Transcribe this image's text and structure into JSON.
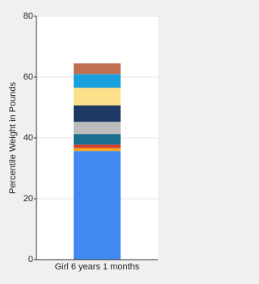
{
  "chart_data": {
    "type": "stacked-bar",
    "y_label": "Percentile Weight in Pounds",
    "categories": [
      "Girl 6 years 1 months"
    ],
    "series": [
      {
        "color": "#4189f0",
        "values": [
          35.7
        ]
      },
      {
        "color": "#f5a623",
        "values": [
          1
        ]
      },
      {
        "color": "#d9402a",
        "values": [
          1.1
        ]
      },
      {
        "color": "#1a6f8e",
        "values": [
          3.5
        ]
      },
      {
        "color": "#bcbcbc",
        "values": [
          4
        ]
      },
      {
        "color": "#1f3a64",
        "values": [
          5.4
        ]
      },
      {
        "color": "#fde08a",
        "values": [
          5.8
        ]
      },
      {
        "color": "#1aa0de",
        "values": [
          4.5
        ]
      },
      {
        "color": "#c07050",
        "values": [
          3.5
        ]
      }
    ],
    "ylim": [
      0,
      80
    ],
    "yticks": [
      0,
      20,
      40,
      60,
      80
    ],
    "grid": true
  }
}
